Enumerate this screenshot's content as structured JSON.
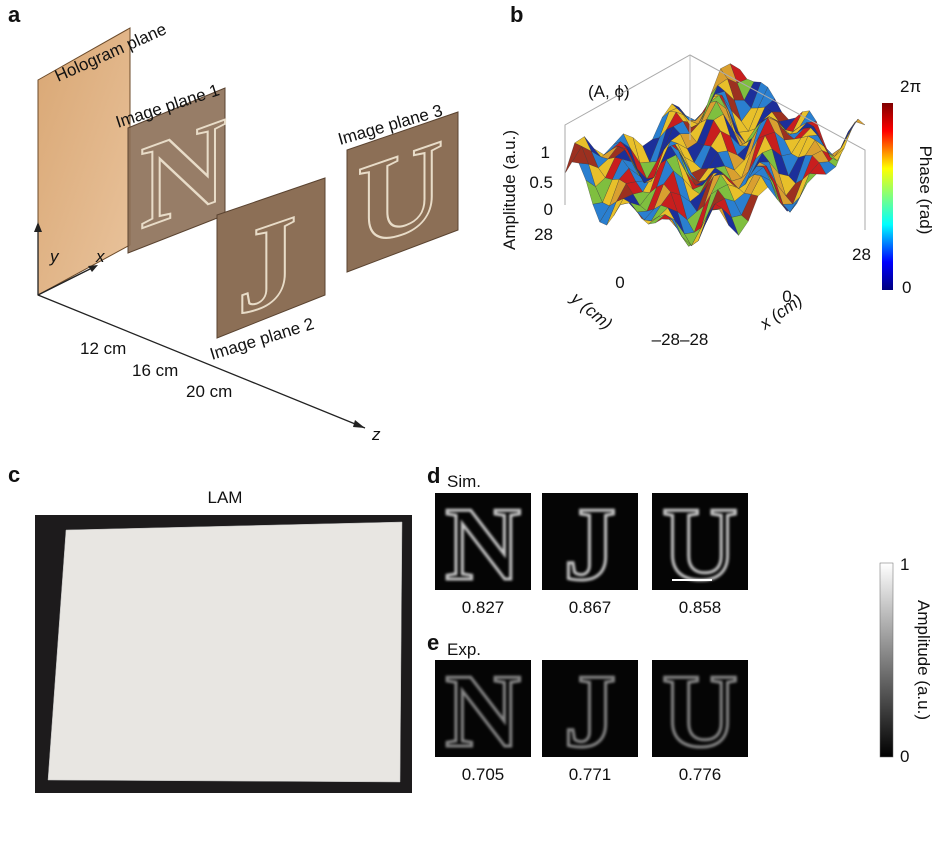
{
  "panel_a": {
    "label": "a",
    "hologram_plane": "Hologram plane",
    "image_planes": [
      "Image plane 1",
      "Image plane 2",
      "Image plane 3"
    ],
    "letters": [
      "N",
      "J",
      "U"
    ],
    "axes": {
      "y": "y",
      "x": "x",
      "z": "z"
    },
    "distances": [
      "12 cm",
      "16 cm",
      "20 cm"
    ]
  },
  "panel_b": {
    "label": "b",
    "title": "(A, ϕ)",
    "z_axis": "Amplitude (a.u.)",
    "z_ticks": [
      "1",
      "0.5",
      "0"
    ],
    "y_axis": "y (cm)",
    "y_ticks": [
      "28",
      "0",
      "–28"
    ],
    "x_axis": "x (cm)",
    "x_ticks": [
      "–28",
      "0",
      "28"
    ],
    "colorbar_label": "Phase (rad)",
    "colorbar_ticks": [
      "2π",
      "0"
    ]
  },
  "panel_c": {
    "label": "c",
    "title": "LAM"
  },
  "panel_d": {
    "label": "d",
    "row_label": "Sim.",
    "scores": [
      "0.827",
      "0.867",
      "0.858"
    ]
  },
  "panel_e": {
    "label": "e",
    "row_label": "Exp.",
    "scores": [
      "0.705",
      "0.771",
      "0.776"
    ]
  },
  "colorbar": {
    "label": "Amplitude (a.u.)",
    "ticks": [
      "1",
      "0"
    ]
  }
}
